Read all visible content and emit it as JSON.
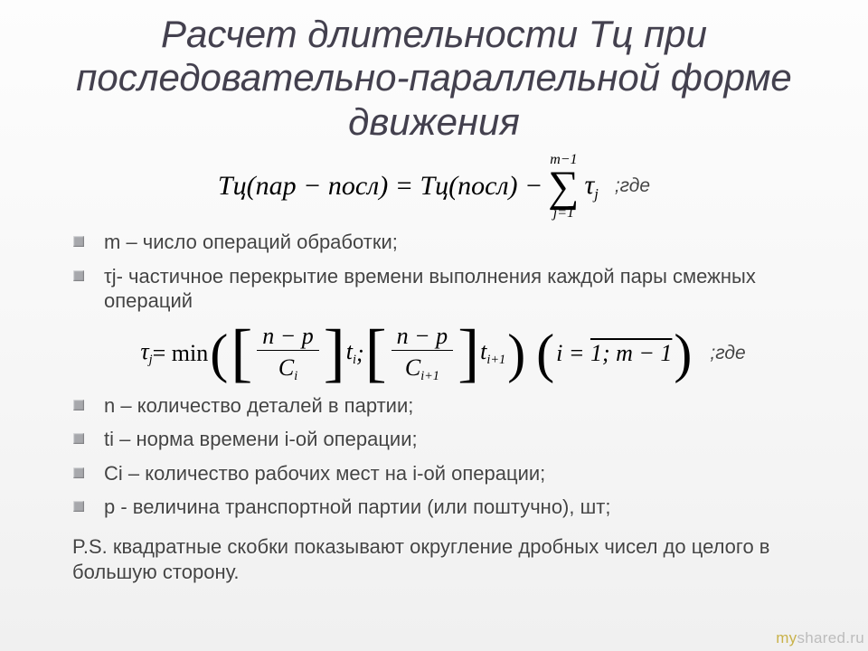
{
  "title": "Расчет длительности Тц при последовательно-параллельной форме движения",
  "where_label": ";где",
  "bullets1": {
    "b0": "m – число операций обработки;",
    "b1": "τj- частичное перекрытие времени выполнения каждой пары смежных операций"
  },
  "bullets2": {
    "b0": "n – количество деталей в партии;",
    "b1": "ti – норма времени i-ой операции;",
    "b2": "Ci – количество рабочих мест на  i-ой операции;",
    "b3": "p  - величина транспортной партии (или поштучно), шт;"
  },
  "ps": "P.S. квадратные скобки показывают округление дробных чисел до целого в большую сторону.",
  "watermark": {
    "a": "my",
    "b": "shared.ru"
  },
  "formula1": {
    "lhs": "Тц(пар − посл) = Тц(посл) −",
    "sum_upper": "m−1",
    "sum_lower": "j=1",
    "tau": "τ",
    "tau_sub": "j"
  },
  "formula2": {
    "tau": "τ",
    "tau_sub": "j",
    "min": " = min",
    "frac_num": "n − p",
    "C": "C",
    "Ci": "i",
    "Ci1": "i+1",
    "t": "t",
    "ti": "i",
    "ti1": "i+1",
    "sep": ";",
    "range_i": "i = ",
    "range_val": "1; m − 1"
  },
  "style": {
    "title_color": "#43404e",
    "bullet_color": "#a7a8ac",
    "text_color": "#444",
    "bg_top": "#fdfdfd",
    "bg_bottom": "#f0f0f0",
    "title_fontsize": 42,
    "body_fontsize": 22,
    "math_fontsize": 30
  }
}
